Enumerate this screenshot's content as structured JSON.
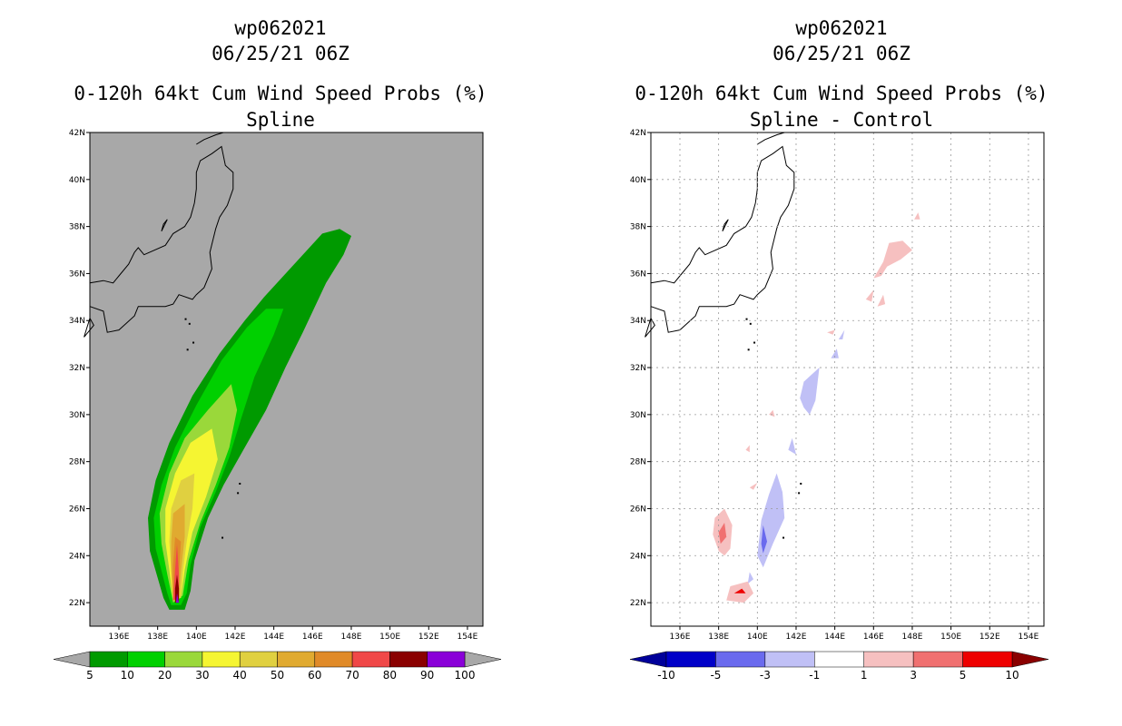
{
  "left": {
    "title_line1": "wp062021",
    "title_line2": "06/25/21 06Z",
    "title_line3": "0-120h 64kt Cum Wind Speed Probs (%)",
    "title_line4": "Spline",
    "background_color": "#a8a8a8",
    "colorbar": {
      "labels": [
        "5",
        "10",
        "20",
        "30",
        "40",
        "50",
        "60",
        "70",
        "80",
        "90",
        "100"
      ],
      "colors": [
        "#009a00",
        "#00d000",
        "#9ad83a",
        "#f5f532",
        "#e0d040",
        "#e0aa30",
        "#e08a28",
        "#f04848",
        "#8a0000",
        "#8a00d8"
      ],
      "under_color": "#a8a8a8",
      "over_color": "#a8a8a8"
    }
  },
  "right": {
    "title_line1": "wp062021",
    "title_line2": "06/25/21 06Z",
    "title_line3": "0-120h 64kt Cum Wind Speed Probs (%)",
    "title_line4": "Spline - Control",
    "background_color": "#ffffff",
    "colorbar": {
      "labels": [
        "-10",
        "-5",
        "-3",
        "-1",
        "1",
        "3",
        "5",
        "10"
      ],
      "colors": [
        "#0000c8",
        "#6a6aee",
        "#c0c0f6",
        "#ffffff",
        "#f6c0c0",
        "#f07070",
        "#ee0000"
      ],
      "under_color": "#00009a",
      "over_color": "#8a0000"
    }
  },
  "axes": {
    "lat_labels": [
      "42N",
      "40N",
      "38N",
      "36N",
      "34N",
      "32N",
      "30N",
      "28N",
      "26N",
      "24N",
      "22N"
    ],
    "lon_labels": [
      "136E",
      "138E",
      "140E",
      "142E",
      "144E",
      "146E",
      "148E",
      "150E",
      "152E",
      "154E"
    ]
  }
}
